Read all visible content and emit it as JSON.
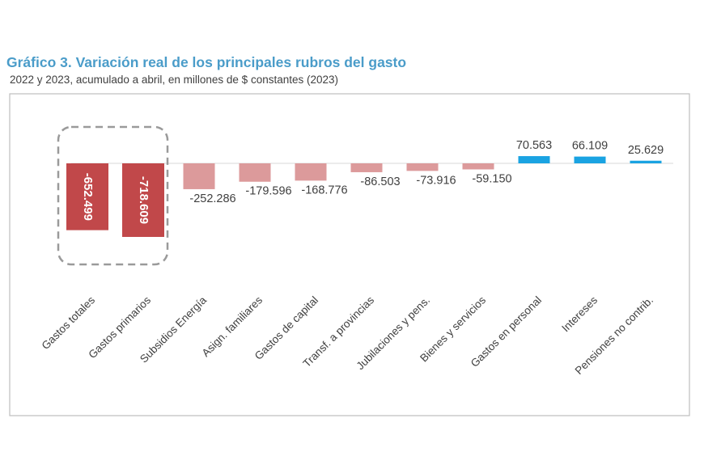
{
  "title": "Gráfico 3. Variación real de los principales rubros del gasto",
  "subtitle": "2022 y 2023, acumulado a abril, en millones de $ constantes (2023)",
  "colors": {
    "highlight_negative": "#c1484a",
    "negative": "#dc9a9b",
    "positive": "#1aa3e2",
    "frame": "#bfbfbf",
    "highlight_box": "#9a9a9a"
  },
  "chart_data": {
    "type": "bar",
    "categories": [
      "Gastos totales",
      "Gastos primarios",
      "Subsidios Energía",
      "Asign. familiares",
      "Gastos de capital",
      "Transf. a provincias",
      "Jubilaciones y pens.",
      "Bienes y servicios",
      "Gastos en personal",
      "Intereses",
      "Pensiones no contrib."
    ],
    "values": [
      -652499,
      -718609,
      -252286,
      -179596,
      -168776,
      -86503,
      -73916,
      -59150,
      70563,
      66109,
      25629
    ],
    "value_labels": [
      "-652.499",
      "-718.609",
      "-252.286",
      "-179.596",
      "-168.776",
      "-86.503",
      "-73.916",
      "-59.150",
      "70.563",
      "66.109",
      "25.629"
    ],
    "highlighted_categories": [
      "Gastos totales",
      "Gastos primarios"
    ],
    "grid": false,
    "legend": "none"
  }
}
